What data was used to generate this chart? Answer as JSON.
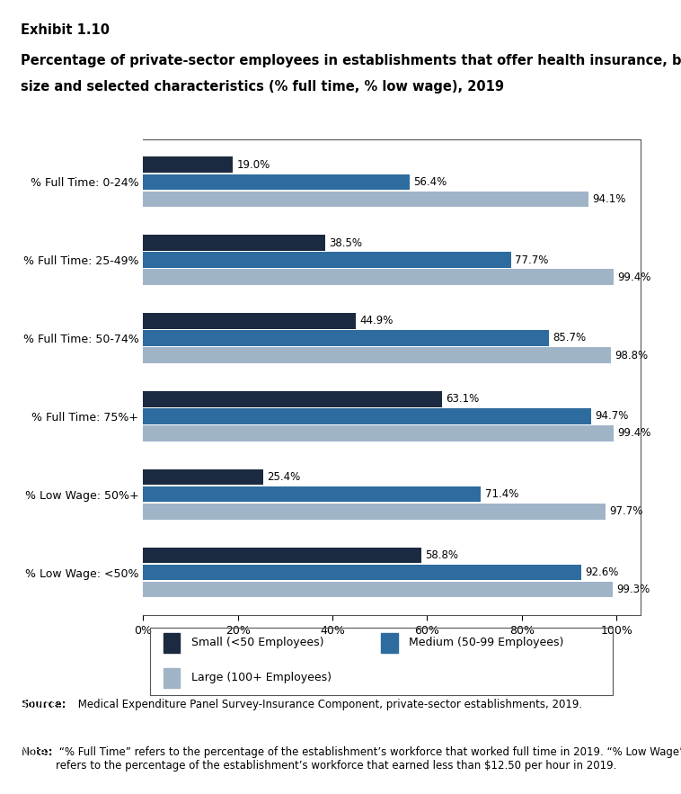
{
  "exhibit_label": "Exhibit 1.10",
  "title_line1": "Percentage of private-sector employees in establishments that offer health insurance, by firm",
  "title_line2": "size and selected characteristics (% full time, % low wage), 2019",
  "categories": [
    "% Full Time: 0-24%",
    "% Full Time: 25-49%",
    "% Full Time: 50-74%",
    "% Full Time: 75%+",
    "% Low Wage: 50%+",
    "% Low Wage: <50%"
  ],
  "series": [
    {
      "name": "Small (<50 Employees)",
      "color": "#1b2a40",
      "values": [
        19.0,
        38.5,
        44.9,
        63.1,
        25.4,
        58.8
      ]
    },
    {
      "name": "Medium (50-99 Employees)",
      "color": "#2e6b9e",
      "values": [
        56.4,
        77.7,
        85.7,
        94.7,
        71.4,
        92.6
      ]
    },
    {
      "name": "Large (100+ Employees)",
      "color": "#a0b4c8",
      "values": [
        94.1,
        99.4,
        98.8,
        99.4,
        97.7,
        99.3
      ]
    }
  ],
  "xtick_labels": [
    "0%",
    "20%",
    "40%",
    "60%",
    "80%",
    "100%"
  ],
  "xtick_values": [
    0,
    20,
    40,
    60,
    80,
    100
  ],
  "bar_height": 0.22,
  "source_bold": "Source:",
  "source_rest": " Medical Expenditure Panel Survey-Insurance Component, private-sector establishments, 2019.",
  "note_bold": "Note:",
  "note_rest": " “% Full Time” refers to the percentage of the establishment’s workforce that worked full time in 2019. “% Low Wage”\nrefers to the percentage of the establishment’s workforce that earned less than $12.50 per hour in 2019.",
  "background_color": "#ffffff",
  "border_color": "#555555",
  "label_fontsize": 8.5,
  "title_fontsize": 10.5,
  "tick_fontsize": 9,
  "legend_fontsize": 9,
  "note_fontsize": 8.5
}
